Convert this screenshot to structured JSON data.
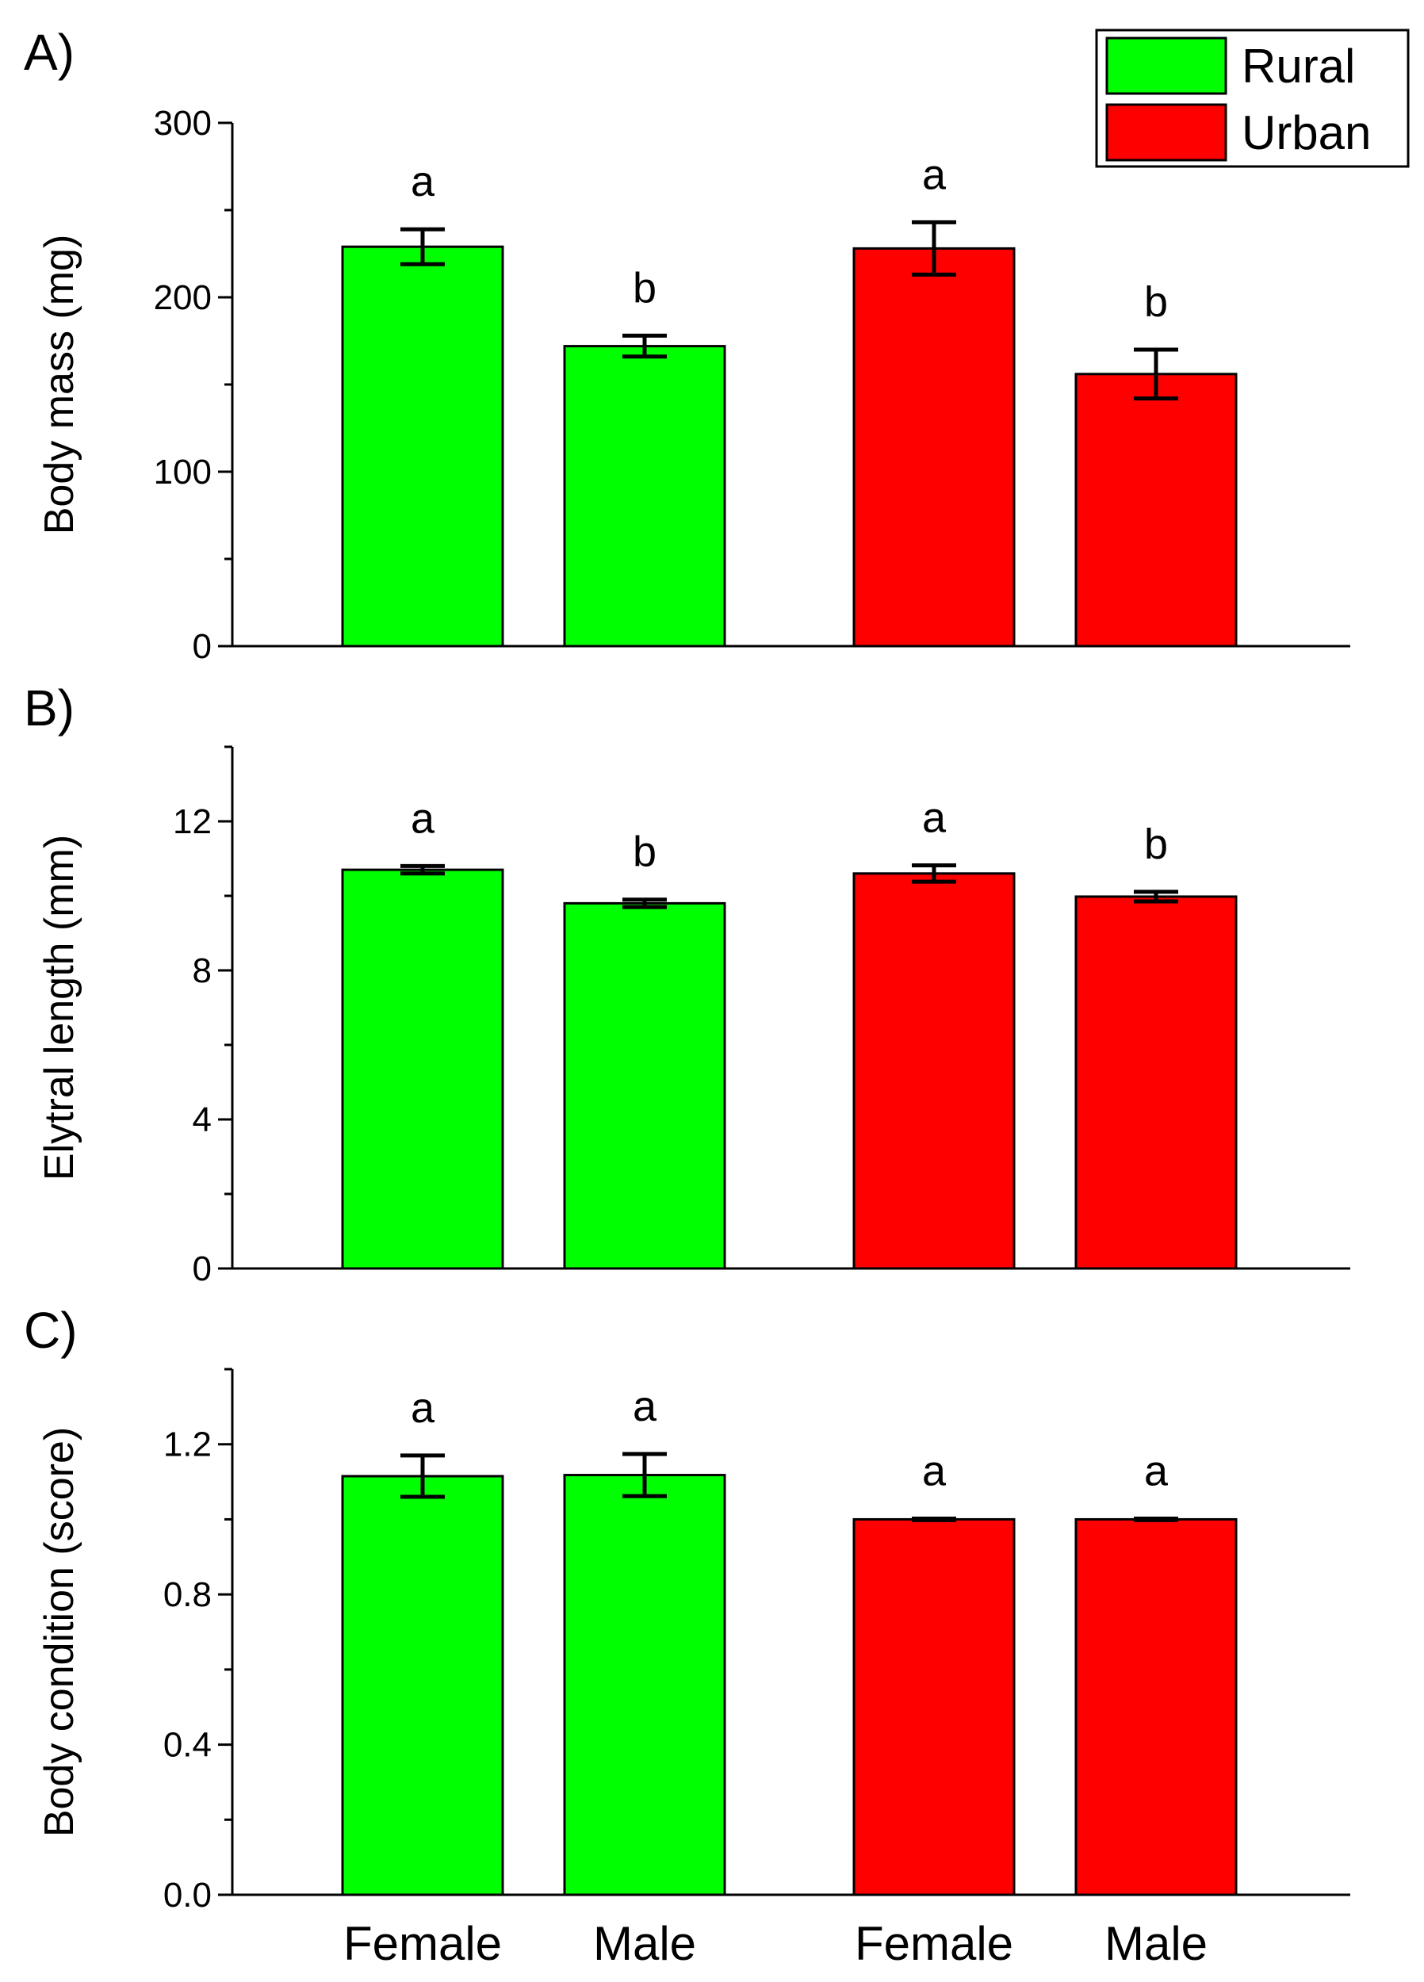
{
  "figure": {
    "x_categories": [
      "Female",
      "Male",
      "Female",
      "Male"
    ],
    "series_colors": {
      "Rural": "#00ff00",
      "Urban": "#ff0000"
    }
  },
  "legend": {
    "items": [
      {
        "label": "Rural",
        "color": "#00ff00"
      },
      {
        "label": "Urban",
        "color": "#ff0000"
      }
    ]
  },
  "chart_data": [
    {
      "panel": "A)",
      "type": "bar",
      "ylabel": "Body mass (mg)",
      "ylim": [
        0,
        300
      ],
      "yticks": [
        0,
        100,
        200,
        300
      ],
      "yticklabels": [
        "0",
        "100",
        "200",
        "300"
      ],
      "minor_step": 50,
      "bars": [
        {
          "group": "Rural",
          "category": "Female",
          "value": 229,
          "error": 10,
          "sig": "a",
          "color": "#00ff00"
        },
        {
          "group": "Rural",
          "category": "Male",
          "value": 172,
          "error": 6,
          "sig": "b",
          "color": "#00ff00"
        },
        {
          "group": "Urban",
          "category": "Female",
          "value": 228,
          "error": 15,
          "sig": "a",
          "color": "#ff0000"
        },
        {
          "group": "Urban",
          "category": "Male",
          "value": 156,
          "error": 14,
          "sig": "b",
          "color": "#ff0000"
        }
      ]
    },
    {
      "panel": "B)",
      "type": "bar",
      "ylabel": "Elytral length (mm)",
      "ylim": [
        0,
        14
      ],
      "yticks": [
        0,
        4,
        8,
        12
      ],
      "yticklabels": [
        "0",
        "4",
        "8",
        "12"
      ],
      "minor_step": 2,
      "bars": [
        {
          "group": "Rural",
          "category": "Female",
          "value": 10.7,
          "error": 0.1,
          "sig": "a",
          "color": "#00ff00"
        },
        {
          "group": "Rural",
          "category": "Male",
          "value": 9.8,
          "error": 0.1,
          "sig": "b",
          "color": "#00ff00"
        },
        {
          "group": "Urban",
          "category": "Female",
          "value": 10.6,
          "error": 0.22,
          "sig": "a",
          "color": "#ff0000"
        },
        {
          "group": "Urban",
          "category": "Male",
          "value": 9.98,
          "error": 0.13,
          "sig": "b",
          "color": "#ff0000"
        }
      ]
    },
    {
      "panel": "C)",
      "type": "bar",
      "ylabel": "Body condition (score)",
      "ylim": [
        0,
        1.4
      ],
      "yticks": [
        0,
        0.4,
        0.8,
        1.2
      ],
      "yticklabels": [
        "0.0",
        "0.4",
        "0.8",
        "1.2"
      ],
      "minor_step": 0.2,
      "bars": [
        {
          "group": "Rural",
          "category": "Female",
          "value": 1.115,
          "error": 0.055,
          "sig": "a",
          "color": "#00ff00"
        },
        {
          "group": "Rural",
          "category": "Male",
          "value": 1.118,
          "error": 0.056,
          "sig": "a",
          "color": "#00ff00"
        },
        {
          "group": "Urban",
          "category": "Female",
          "value": 1.0,
          "error": 0.002,
          "sig": "a",
          "color": "#ff0000"
        },
        {
          "group": "Urban",
          "category": "Male",
          "value": 1.0,
          "error": 0.002,
          "sig": "a",
          "color": "#ff0000"
        }
      ]
    }
  ]
}
